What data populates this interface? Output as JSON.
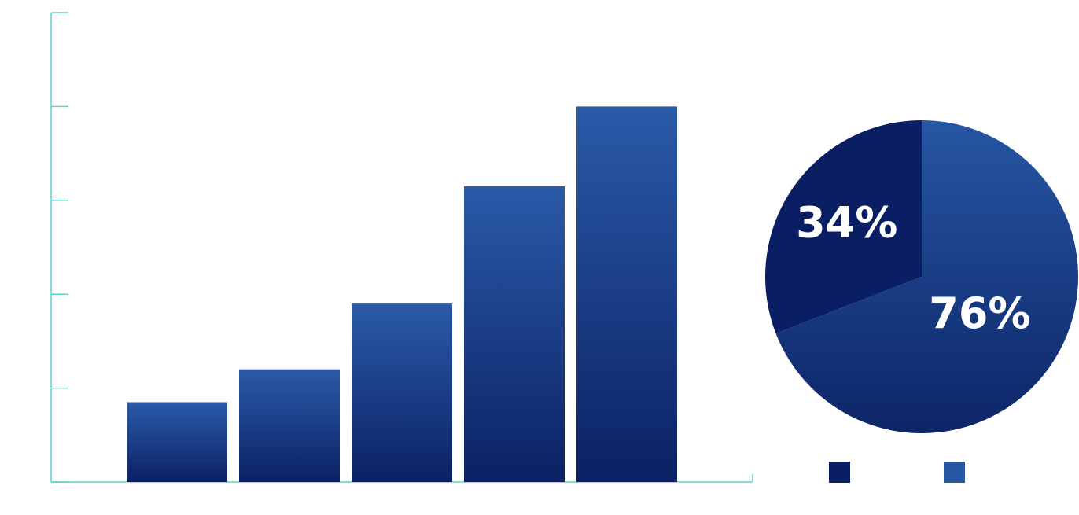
{
  "chart_data": [
    {
      "type": "bar",
      "categories": [
        null,
        null,
        null,
        null,
        null
      ],
      "values": [
        0.85,
        1.2,
        1.9,
        3.15,
        4.0
      ],
      "gradient": [
        "#2a5aa8",
        "#0b2164"
      ],
      "axis_color": "#5fd3c8",
      "ylim": [
        0,
        5
      ],
      "yticks": [
        0,
        1,
        2,
        3,
        4,
        5
      ]
    },
    {
      "type": "pie",
      "categories": [
        null,
        null
      ],
      "values": [
        34,
        76
      ],
      "value_labels": [
        "34%",
        "76%"
      ],
      "colors": [
        "#0a1f63",
        "#2756a3"
      ],
      "gradient_end": "#0c2567"
    }
  ]
}
